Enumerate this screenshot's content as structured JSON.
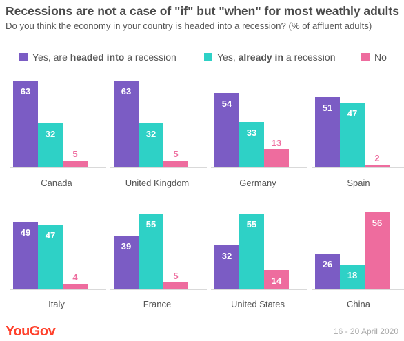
{
  "title": "Recessions are not a case of \"if\" but \"when\" for most weathly adults",
  "subtitle": "Do you think the economy in your country is headed into a recession? (% of affluent  adults)",
  "legend": [
    {
      "prefix": "Yes, are ",
      "bold": "headed into",
      "suffix": " a recession",
      "color": "#7b5cc4"
    },
    {
      "prefix": "Yes, ",
      "bold": "already in",
      "suffix": " a recession",
      "color": "#2ed1c6"
    },
    {
      "prefix": "No",
      "bold": "",
      "suffix": "",
      "color": "#ee6c9e"
    }
  ],
  "footer": {
    "logo": "YouGov",
    "date": "16 - 20 April 2020"
  },
  "chart_data": {
    "type": "bar",
    "categories": [
      "Canada",
      "United Kingdom",
      "Germany",
      "Spain",
      "Italy",
      "France",
      "United States",
      "China"
    ],
    "series": [
      {
        "name": "Yes, are headed into a recession",
        "color": "#7b5cc4",
        "values": [
          63,
          63,
          54,
          51,
          49,
          39,
          32,
          26
        ]
      },
      {
        "name": "Yes, already in a recession",
        "color": "#2ed1c6",
        "values": [
          32,
          32,
          33,
          47,
          47,
          55,
          55,
          18
        ]
      },
      {
        "name": "No",
        "color": "#ee6c9e",
        "values": [
          5,
          5,
          13,
          2,
          4,
          5,
          14,
          56
        ]
      }
    ],
    "ylim": [
      0,
      65
    ],
    "grid": false,
    "legend_position": "top"
  }
}
